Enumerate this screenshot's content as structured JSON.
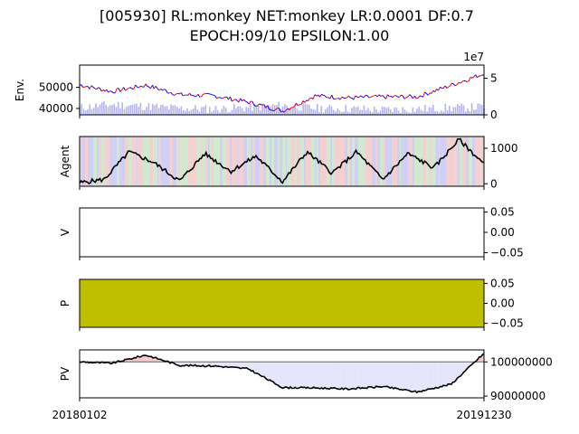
{
  "title_line1": "[005930] RL:monkey NET:monkey LR:0.0001 DF:0.7",
  "title_line2": "EPOCH:09/10 EPSILON:1.00",
  "x_start_label": "20180102",
  "x_end_label": "20191230",
  "colors": {
    "price_up": "#ff0000",
    "price_down": "#0000ff",
    "volume": "#b4b4f0",
    "agent_line": "#000000",
    "p_fill": "#bfbf00",
    "pv_loss_fill": "#e4e4fb",
    "pv_gain_fill": "#f3c9c9",
    "pv_baseline": "#808080",
    "bg_buy": "#f2c8c8",
    "bg_sell": "#c8c8f2",
    "bg_hold": "#c8e6c8"
  },
  "chart_data": [
    {
      "type": "line",
      "panel": "env",
      "ylabel": "Env.",
      "ylim": [
        37000,
        60500
      ],
      "yticks": [
        40000,
        50000
      ],
      "ytick_labels": [
        "40000",
        "50000"
      ],
      "secondary_ylim": [
        0,
        68000000
      ],
      "secondary_yticks": [
        0,
        50000000
      ],
      "secondary_ytick_labels": [
        "0",
        "5"
      ],
      "secondary_offset_label": "1e7",
      "x": [
        "2018-01-02",
        "2018-03-01",
        "2018-05-01",
        "2018-07-01",
        "2018-09-01",
        "2018-11-01",
        "2019-01-02",
        "2019-03-01",
        "2019-05-01",
        "2019-07-01",
        "2019-09-01",
        "2019-11-01",
        "2019-12-30"
      ],
      "series": [
        {
          "role": "close_price",
          "values": [
            51200,
            48000,
            51000,
            46500,
            46000,
            43000,
            38800,
            46000,
            45000,
            45500,
            45500,
            51000,
            56500
          ]
        },
        {
          "role": "volume",
          "values": [
            10000000,
            14000000,
            12000000,
            9000000,
            8000000,
            10000000,
            13000000,
            9000000,
            8500000,
            7000000,
            8000000,
            9500000,
            11000000
          ]
        }
      ]
    },
    {
      "type": "line",
      "panel": "agent",
      "ylabel": "Agent",
      "ylim": [
        -70,
        1330
      ],
      "yticks": [
        0,
        1000
      ],
      "ytick_labels": [
        "0",
        "1000"
      ],
      "x": [
        "2018-01-02",
        "2018-02-15",
        "2018-04-01",
        "2018-05-15",
        "2018-07-01",
        "2018-08-15",
        "2018-10-01",
        "2018-11-15",
        "2019-01-02",
        "2019-02-15",
        "2019-04-01",
        "2019-05-15",
        "2019-07-01",
        "2019-08-15",
        "2019-10-01",
        "2019-11-15",
        "2019-12-30"
      ],
      "series": [
        {
          "role": "num_stocks",
          "values": [
            30,
            120,
            900,
            600,
            80,
            850,
            350,
            780,
            60,
            900,
            300,
            900,
            120,
            850,
            450,
            1250,
            550
          ]
        }
      ]
    },
    {
      "type": "area",
      "panel": "v",
      "ylabel": "V",
      "ylim": [
        -0.06,
        0.06
      ],
      "yticks": [
        0.05,
        0.0,
        -0.05
      ],
      "ytick_labels": [
        "0.05",
        "0.00",
        "−0.05"
      ],
      "series": []
    },
    {
      "type": "area",
      "panel": "p",
      "ylabel": "P",
      "ylim": [
        -0.06,
        0.06
      ],
      "yticks": [
        0.05,
        0.0,
        -0.05
      ],
      "ytick_labels": [
        "0.05",
        "0.00",
        "−0.05"
      ],
      "series": []
    },
    {
      "type": "line",
      "panel": "pv",
      "ylabel": "PV",
      "ylim": [
        89500000,
        103500000
      ],
      "yticks": [
        100000000,
        90000000
      ],
      "ytick_labels": [
        "100000000",
        "90000000"
      ],
      "baseline": 100000000,
      "x": [
        "2018-01-02",
        "2018-03-01",
        "2018-05-01",
        "2018-07-01",
        "2018-09-01",
        "2018-11-01",
        "2019-01-02",
        "2019-03-01",
        "2019-05-01",
        "2019-07-01",
        "2019-09-01",
        "2019-11-01",
        "2019-12-30"
      ],
      "series": [
        {
          "role": "portfolio_value",
          "values": [
            100000000,
            99600000,
            102000000,
            99000000,
            98800000,
            98000000,
            92500000,
            92400000,
            92100000,
            92800000,
            91200000,
            93500000,
            102500000
          ]
        }
      ]
    }
  ]
}
